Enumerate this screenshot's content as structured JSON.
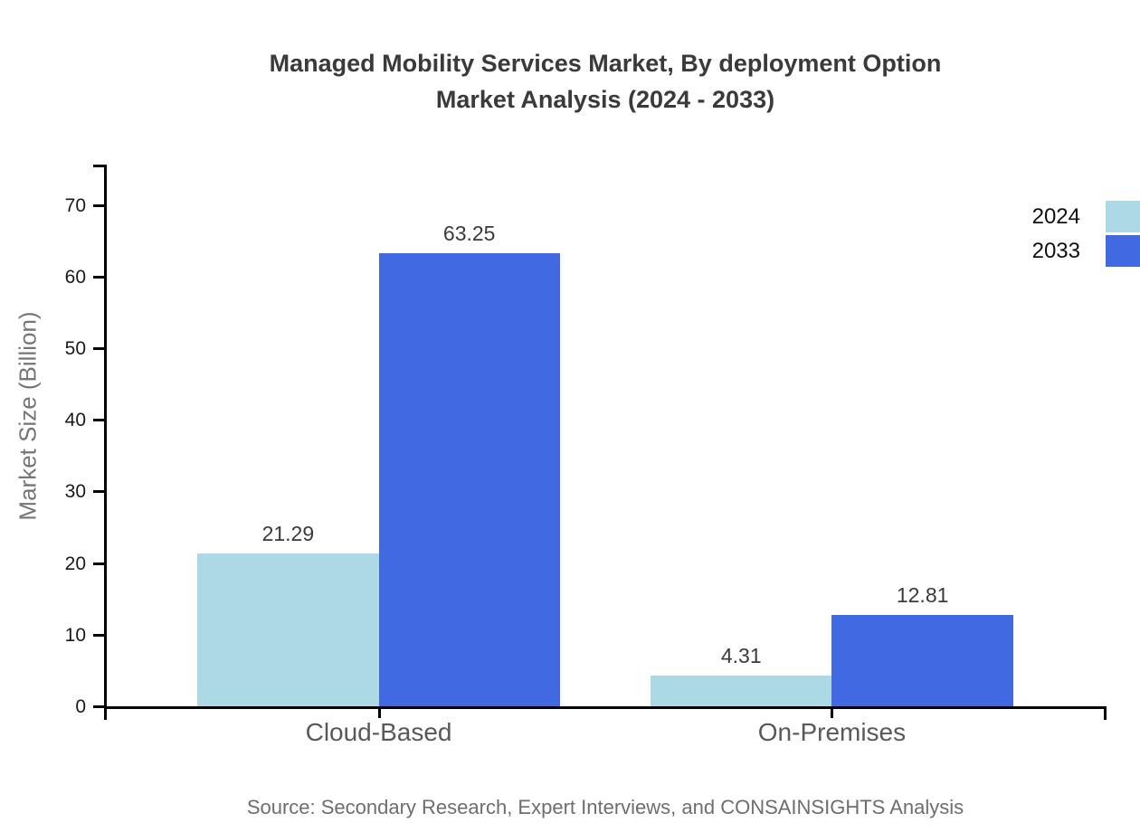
{
  "chart_data": {
    "type": "bar",
    "title_lines": [
      "Managed Mobility Services Market, By deployment Option",
      "Market Analysis (2024 - 2033)"
    ],
    "categories": [
      "Cloud-Based",
      "On-Premises"
    ],
    "series": [
      {
        "name": "2024",
        "color": "#ADD8E6",
        "values": [
          21.29,
          4.31
        ]
      },
      {
        "name": "2033",
        "color": "#4169E1",
        "values": [
          63.25,
          12.81
        ]
      }
    ],
    "ylabel": "Market Size (Billion)",
    "xlabel": "",
    "ylim": [
      0,
      75
    ],
    "yticks": [
      0,
      10,
      20,
      30,
      40,
      50,
      60,
      70
    ],
    "legend_position": "top-right",
    "grid": false,
    "value_label_decimals": 2
  },
  "source_note": "Source: Secondary Research, Expert Interviews, and CONSAINSIGHTS Analysis",
  "colors": {
    "bar_2024": "#ADD8E6",
    "bar_2033": "#4169E1",
    "title": "#3a3a3a",
    "axis": "#000000",
    "tick_label": "#1a1a1a",
    "value_label": "#3a3a3a",
    "category_label": "#595959",
    "axis_title": "#757575",
    "source": "#6e6e6e",
    "legend_text": "#111111",
    "background": "#ffffff"
  }
}
